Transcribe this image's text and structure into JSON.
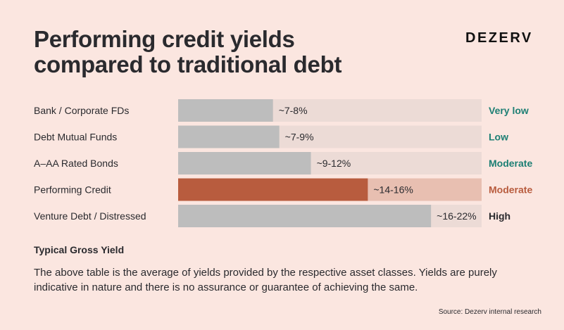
{
  "title_line1": "Performing credit yields",
  "title_line2": "compared to traditional debt",
  "brand": "DEZERV",
  "chart_data": {
    "type": "bar",
    "orientation": "horizontal",
    "xlabel": "Typical Gross Yield",
    "xlim": [
      0,
      24
    ],
    "grid": false,
    "categories": [
      "Bank / Corporate FDs",
      "Debt Mutual Funds",
      "A–AA Rated Bonds",
      "Performing Credit",
      "Venture Debt / Distressed"
    ],
    "values": [
      7.5,
      8,
      10.5,
      15,
      20
    ],
    "value_labels": [
      "~7-8%",
      "~7-9%",
      "~9-12%",
      "~14-16%",
      "~16-22%"
    ],
    "risk_labels": [
      "Very low",
      "Low",
      "Moderate",
      "Moderate",
      "High"
    ],
    "highlight_index": 3
  },
  "colors": {
    "bar": "#bdbdbd",
    "track": "#ecdbd6",
    "highlight_bar": "#b85c3e",
    "highlight_track": "#e8bfb1",
    "risk_teal": "#1d7f74",
    "risk_orange": "#b85c3e",
    "risk_dark": "#2a2a2e"
  },
  "risk_color_keys": [
    "risk_teal",
    "risk_teal",
    "risk_teal",
    "risk_orange",
    "risk_dark"
  ],
  "disclaimer": "The above table is the average of yields provided by the respective asset classes. Yields are purely indicative in nature and there is no assurance or guarantee of achieving the same.",
  "source": "Source: Dezerv internal research"
}
